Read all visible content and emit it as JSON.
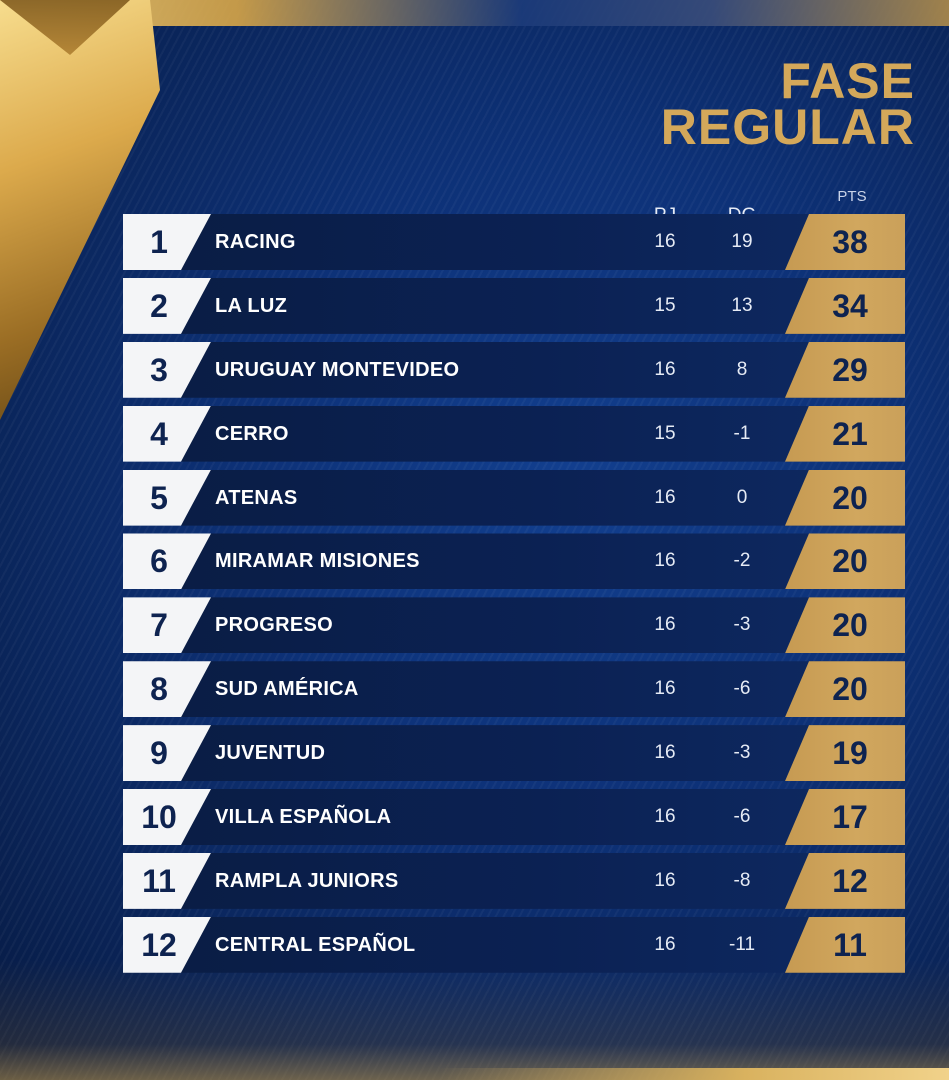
{
  "title": {
    "line1": "FASE",
    "line2": "REGULAR"
  },
  "columns": {
    "pj": "PJ",
    "dg": "DG",
    "pts": "PTS"
  },
  "colors": {
    "background": "#0d3177",
    "gold": "#d4a85a",
    "row_dark": "#0b2153",
    "rank_box": "#f4f5f7"
  },
  "standings": [
    {
      "rank": "1",
      "team": "RACING",
      "pj": "16",
      "dg": "19",
      "pts": "38"
    },
    {
      "rank": "2",
      "team": "LA LUZ",
      "pj": "15",
      "dg": "13",
      "pts": "34"
    },
    {
      "rank": "3",
      "team": "URUGUAY MONTEVIDEO",
      "pj": "16",
      "dg": "8",
      "pts": "29"
    },
    {
      "rank": "4",
      "team": "CERRO",
      "pj": "15",
      "dg": "-1",
      "pts": "21"
    },
    {
      "rank": "5",
      "team": "ATENAS",
      "pj": "16",
      "dg": "0",
      "pts": "20"
    },
    {
      "rank": "6",
      "team": "MIRAMAR MISIONES",
      "pj": "16",
      "dg": "-2",
      "pts": "20"
    },
    {
      "rank": "7",
      "team": "PROGRESO",
      "pj": "16",
      "dg": "-3",
      "pts": "20"
    },
    {
      "rank": "8",
      "team": "SUD AMÉRICA",
      "pj": "16",
      "dg": "-6",
      "pts": "20"
    },
    {
      "rank": "9",
      "team": "JUVENTUD",
      "pj": "16",
      "dg": "-3",
      "pts": "19"
    },
    {
      "rank": "10",
      "team": "VILLA ESPAÑOLA",
      "pj": "16",
      "dg": "-6",
      "pts": "17"
    },
    {
      "rank": "11",
      "team": "RAMPLA JUNIORS",
      "pj": "16",
      "dg": "-8",
      "pts": "12"
    },
    {
      "rank": "12",
      "team": "CENTRAL ESPAÑOL",
      "pj": "16",
      "dg": "-11",
      "pts": "11"
    }
  ]
}
